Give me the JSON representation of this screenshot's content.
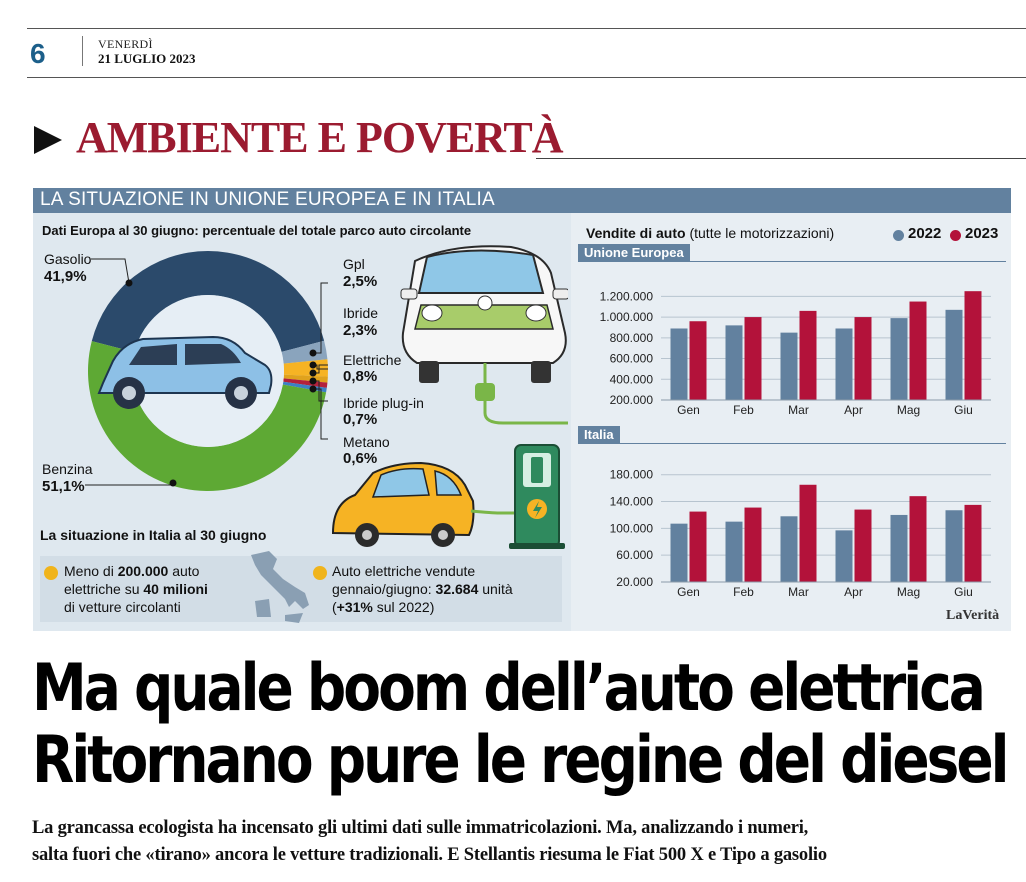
{
  "masthead": {
    "page_number": "6",
    "day": "VENERDÌ",
    "date": "21 LUGLIO 2023"
  },
  "section": {
    "title": "AMBIENTE E POVERTÀ"
  },
  "infographic": {
    "header": "LA SITUAZIONE IN UNIONE EUROPEA E IN ITALIA",
    "donut_title": "Dati Europa al 30 giugno: percentuale del totale parco auto circolante",
    "fuels": [
      {
        "name": "Gasolio",
        "value_label": "41,9%",
        "value": 41.9,
        "color": "#2b4a6b"
      },
      {
        "name": "Gpl",
        "value_label": "2,5%",
        "value": 2.5,
        "color": "#8aa4bd"
      },
      {
        "name": "Ibride",
        "value_label": "2,3%",
        "value": 2.3,
        "color": "#f6b324"
      },
      {
        "name": "Elettriche",
        "value_label": "0,8%",
        "value": 0.8,
        "color": "#e0a21d"
      },
      {
        "name": "Ibride plug-in",
        "value_label": "0,7%",
        "value": 0.7,
        "color": "#b3213c"
      },
      {
        "name": "Metano",
        "value_label": "0,6%",
        "value": 0.6,
        "color": "#3c80c4"
      },
      {
        "name": "Benzina",
        "value_label": "51,1%",
        "value": 51.1,
        "color": "#5ea934"
      }
    ],
    "italy_title": "La situazione in Italia al 30 giugno",
    "italy_box_1": {
      "line1_pre": "Meno di ",
      "line1_bold": "200.000",
      "line1_post": " auto",
      "line2_pre": "elettriche su ",
      "line2_bold": "40 milioni",
      "line3": "di vetture circolanti"
    },
    "italy_box_2": {
      "line1": "Auto elettriche vendute",
      "line2_pre": "gennaio/giugno: ",
      "line2_bold": "32.684",
      "line2_post": " unità",
      "line3_open": "(",
      "line3_bold": "+31%",
      "line3_post": " sul 2022)"
    },
    "sales_title_bold": "Vendite di auto",
    "sales_title_rest": " (tutte le motorizzazioni)",
    "brand": "LaVerità"
  },
  "chart_data": [
    {
      "type": "bar",
      "title": "Unione Europea",
      "categories": [
        "Gen",
        "Feb",
        "Mar",
        "Apr",
        "Mag",
        "Giu"
      ],
      "series": [
        {
          "name": "2022",
          "color": "#62819f",
          "values": [
            890000,
            920000,
            850000,
            890000,
            990000,
            1070000
          ]
        },
        {
          "name": "2023",
          "color": "#b3123a",
          "values": [
            960000,
            1000000,
            1060000,
            1000000,
            1150000,
            1250000
          ]
        }
      ],
      "yticks": [
        "1.200.000",
        "1.000.000",
        "800.000",
        "600.000",
        "400.000",
        "200.000"
      ],
      "ytick_values": [
        1200000,
        1000000,
        800000,
        600000,
        400000,
        200000
      ],
      "ylim": [
        200000,
        1300000
      ]
    },
    {
      "type": "bar",
      "title": "Italia",
      "categories": [
        "Gen",
        "Feb",
        "Mar",
        "Apr",
        "Mag",
        "Giu"
      ],
      "series": [
        {
          "name": "2022",
          "color": "#62819f",
          "values": [
            107000,
            110000,
            118000,
            97000,
            120000,
            127000
          ]
        },
        {
          "name": "2023",
          "color": "#b3123a",
          "values": [
            125000,
            131000,
            165000,
            128000,
            148000,
            135000
          ]
        }
      ],
      "yticks": [
        "180.000",
        "140.000",
        "100.000",
        "60.000",
        "20.000"
      ],
      "ytick_values": [
        180000,
        140000,
        100000,
        60000,
        20000
      ],
      "ylim": [
        20000,
        190000
      ]
    }
  ],
  "headline": {
    "line1": "Ma quale boom dell’auto elettrica",
    "line2": "Ritornano pure le regine del diesel"
  },
  "subhead": {
    "line1": "La grancassa ecologista ha incensato gli ultimi dati sulle immatricolazioni. Ma, analizzando i numeri,",
    "line2": "salta fuori che «tirano» ancora le vetture tradizionali. E Stellantis riesuma le Fiat 500 X e Tipo a gasolio"
  }
}
